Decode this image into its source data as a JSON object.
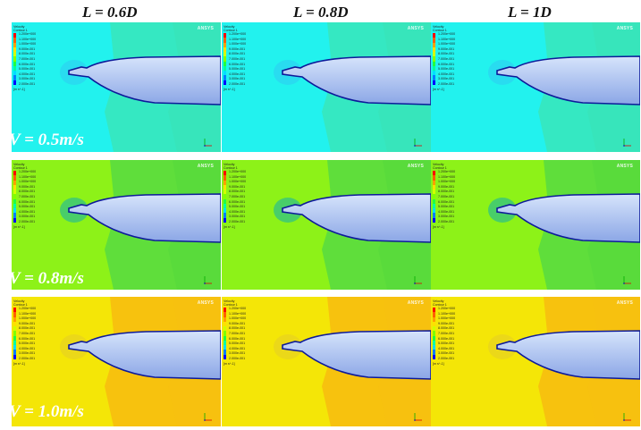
{
  "columns": [
    "L = 0.6D",
    "L = 0.8D",
    "L = 1D"
  ],
  "rows": [
    "V = 0.5m/s",
    "V = 0.8m/s",
    "V = 1.0m/s"
  ],
  "legend": {
    "title": [
      "Velocity",
      "Contour 1"
    ],
    "ticks": [
      "1.200e+000",
      "1.100e+000",
      "1.000e+000",
      "9.000e-001",
      "8.000e-001",
      "7.000e-001",
      "6.000e-001",
      "5.000e-001",
      "4.000e-001",
      "3.000e-001",
      "2.000e-001"
    ],
    "unit": "[m s^-1]",
    "colors": [
      "#ff0000",
      "#ff6000",
      "#ffa000",
      "#ffe000",
      "#d0ff00",
      "#80ff00",
      "#20ff40",
      "#00ffa0",
      "#00e0ff",
      "#0080ff",
      "#0000ff"
    ]
  },
  "logo_text": "ANSYS",
  "field_colors": {
    "row0": {
      "far": "#22f2ee",
      "mid": "#35e8c2",
      "wake": "#39e3b6",
      "near": "#2ad8f0"
    },
    "row1": {
      "far": "#8df218",
      "mid": "#5fde3b",
      "wake": "#55d83c",
      "near": "#3cc878"
    },
    "row2": {
      "far": "#f4e607",
      "mid": "#f7c20e",
      "wake": "#f6bf10",
      "near": "#e9d51c"
    }
  },
  "hull_colors": {
    "fill_top": "#d6e4fb",
    "fill_bottom": "#8ba6e6",
    "edge": "#0d1a9a"
  }
}
